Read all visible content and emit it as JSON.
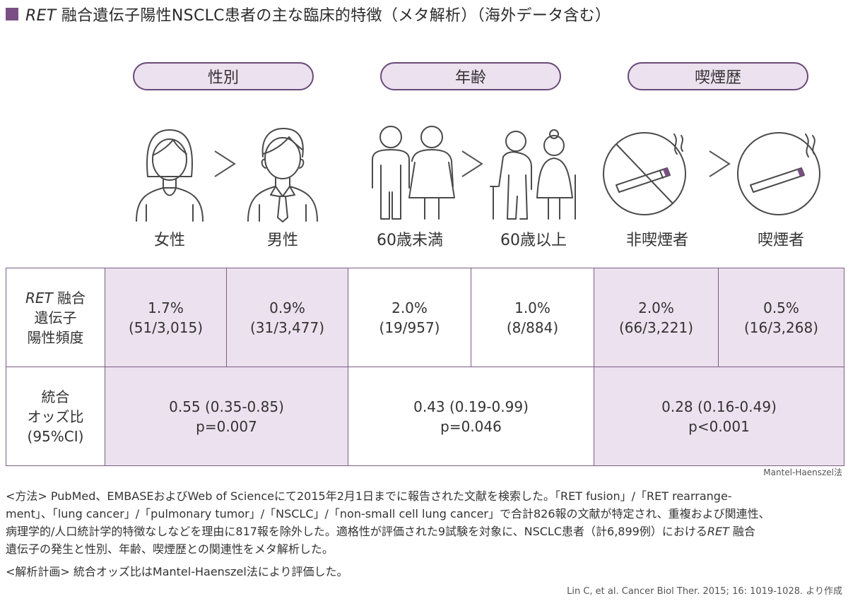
{
  "title": {
    "italic": "RET",
    "rest": " 融合遺伝子陽性NSCLC患者の主な臨床的特徴（メタ解析）（海外データ含む）"
  },
  "categories": [
    {
      "label": "性別",
      "items": [
        "女性",
        "男性"
      ]
    },
    {
      "label": "年齢",
      "items": [
        "60歳未満",
        "60歳以上"
      ]
    },
    {
      "label": "喫煙歴",
      "items": [
        "非喫煙者",
        "喫煙者"
      ]
    }
  ],
  "table": {
    "row1_header": {
      "italic": "RET",
      "line1_rest": " 融合",
      "line2": "遺伝子",
      "line3": "陽性頻度"
    },
    "row1_cells": [
      {
        "pct": "1.7%",
        "count": "(51/3,015)"
      },
      {
        "pct": "0.9%",
        "count": "(31/3,477)"
      },
      {
        "pct": "2.0%",
        "count": "(19/957)"
      },
      {
        "pct": "1.0%",
        "count": "(8/884)"
      },
      {
        "pct": "2.0%",
        "count": "(66/3,221)"
      },
      {
        "pct": "0.5%",
        "count": "(16/3,268)"
      }
    ],
    "row2_header": {
      "line1": "統合",
      "line2": "オッズ比",
      "line3": "(95%CI)"
    },
    "row2_cells": [
      {
        "or": "0.55 (0.35-0.85)",
        "p": "p=0.007"
      },
      {
        "or": "0.43 (0.19-0.99)",
        "p": "p=0.046"
      },
      {
        "or": "0.28 (0.16-0.49)",
        "p": "p<0.001"
      }
    ]
  },
  "mh_note": "Mantel-Haenszel法",
  "methods": {
    "line1": "<方法> PubMed、EMBASEおよびWeb of Scienceにて2015年2月1日までに報告された文献を検索した。「RET fusion」/「RET rearrange-",
    "line2": "ment」、「lung cancer」/「pulmonary tumor」/「NSCLC」/「non-small cell lung cancer」で合計826報の文献が特定され、重複および関連性、",
    "line3_before": "病理学的/人口統計学的特徴なしなどを理由に817報を除外した。適格性が評価された9試験を対象に、NSCLC患者（計6,899例）における",
    "line3_italic": "RET",
    "line3_after": " 融合",
    "line4": "遺伝子の発生と性別、年齢、喫煙歴との関連性をメタ解析した。"
  },
  "plan": "<解析計画> 統合オッズ比はMantel-Haenszel法により評価した。",
  "citation": "Lin C, et al. Cancer Biol Ther. 2015; 16: 1019-1028. より作成",
  "colors": {
    "accent": "#7b4f86",
    "shade": "#ece1ee",
    "line": "#4a4a4a"
  }
}
